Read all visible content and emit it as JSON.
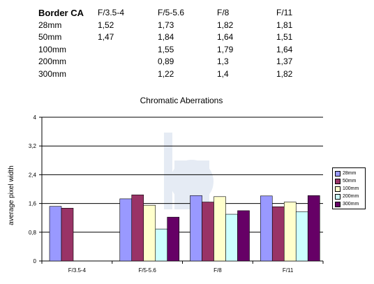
{
  "table": {
    "header": [
      "Border CA",
      "F/3.5-4",
      "F/5-5.6",
      "F/8",
      "F/11"
    ],
    "rows": [
      [
        "28mm",
        "1,52",
        "1,73",
        "1,82",
        "1,81"
      ],
      [
        "50mm",
        "1,47",
        "1,84",
        "1,64",
        "1,51"
      ],
      [
        "100mm",
        "",
        "1,55",
        "1,79",
        "1,64"
      ],
      [
        "200mm",
        "",
        "0,89",
        "1,3",
        "1,37"
      ],
      [
        "300mm",
        "",
        "1,22",
        "1,4",
        "1,82"
      ]
    ]
  },
  "chart_data": {
    "type": "bar",
    "title": "Chromatic Aberrations",
    "ylabel": "average pixel width",
    "xlabel": "",
    "categories": [
      "F/3.5-4",
      "F/5-5.6",
      "F/8",
      "F/11"
    ],
    "ylim": [
      0,
      4
    ],
    "yticks": [
      "0",
      "0,8",
      "1,6",
      "2,4",
      "3,2",
      "4"
    ],
    "ytick_values": [
      0,
      0.8,
      1.6,
      2.4,
      3.2,
      4
    ],
    "grid": true,
    "legend_position": "right",
    "series": [
      {
        "name": "28mm",
        "color": "#9999ff",
        "values": [
          1.52,
          1.73,
          1.82,
          1.81
        ]
      },
      {
        "name": "50mm",
        "color": "#993366",
        "values": [
          1.47,
          1.84,
          1.64,
          1.51
        ]
      },
      {
        "name": "100mm",
        "color": "#ffffcc",
        "values": [
          null,
          1.55,
          1.79,
          1.64
        ]
      },
      {
        "name": "200mm",
        "color": "#ccffff",
        "values": [
          null,
          0.89,
          1.3,
          1.37
        ]
      },
      {
        "name": "300mm",
        "color": "#660066",
        "values": [
          null,
          1.22,
          1.4,
          1.82
        ]
      }
    ]
  }
}
